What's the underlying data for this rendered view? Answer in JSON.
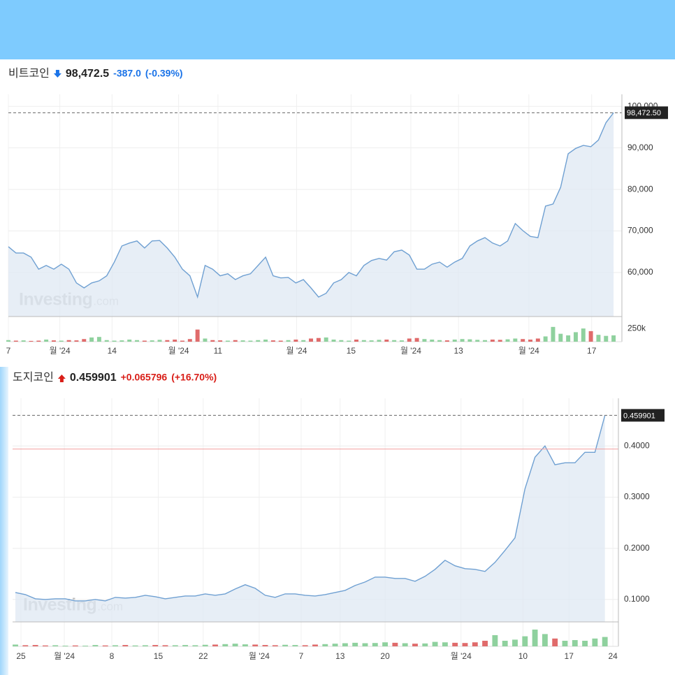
{
  "chart_data": [
    {
      "type": "line",
      "title": "비트코인",
      "price": "98,472.5",
      "change": "-387.0",
      "change_pct": "(-0.39%)",
      "direction": "down",
      "change_color": "#1a73e8",
      "last_price_label": "98,472.50",
      "watermark_brand": "Investing",
      "watermark_suffix": ".com",
      "color": "#6fa0d2",
      "fill": "#dfe8f3",
      "xlim": [
        0,
        81.1
      ],
      "ylim": [
        49400,
        102900
      ],
      "yticks": [
        {
          "value": 60000,
          "label": "60,000"
        },
        {
          "value": 70000,
          "label": "70,000"
        },
        {
          "value": 80000,
          "label": "80,000"
        },
        {
          "value": 90000,
          "label": "90,000"
        },
        {
          "value": 100000,
          "label": "100,000"
        }
      ],
      "xticks": [
        {
          "value": 0,
          "label": "7"
        },
        {
          "value": 6.8,
          "label": "월 '24"
        },
        {
          "value": 13.7,
          "label": "14"
        },
        {
          "value": 22.5,
          "label": "월 '24"
        },
        {
          "value": 27.7,
          "label": "11"
        },
        {
          "value": 38.1,
          "label": "월 '24"
        },
        {
          "value": 45.3,
          "label": "15"
        },
        {
          "value": 53.2,
          "label": "월 '24"
        },
        {
          "value": 59.5,
          "label": "13"
        },
        {
          "value": 68.8,
          "label": "월 '24"
        },
        {
          "value": 77.1,
          "label": "17"
        }
      ],
      "x": [
        0,
        1,
        2,
        3,
        4,
        5,
        6,
        7,
        8,
        9,
        10,
        11,
        12,
        13,
        14,
        15,
        16,
        17,
        18,
        19,
        20,
        21,
        22,
        23,
        24,
        25,
        26,
        27,
        28,
        29,
        30,
        31,
        32,
        33,
        34,
        35,
        36,
        37,
        38,
        39,
        40,
        41,
        42,
        43,
        44,
        45,
        46,
        47,
        48,
        49,
        50,
        51,
        52,
        53,
        54,
        55,
        56,
        57,
        58,
        59,
        60,
        61,
        62,
        63,
        64,
        65,
        66,
        67,
        68,
        69,
        70,
        71,
        72,
        73,
        74,
        75,
        76,
        77,
        78,
        79,
        80
      ],
      "values": [
        66200,
        64700,
        64700,
        63700,
        60800,
        61700,
        60800,
        62000,
        60800,
        57500,
        56300,
        57500,
        58000,
        59200,
        62500,
        66400,
        67100,
        67600,
        65900,
        67600,
        67700,
        65900,
        63700,
        60800,
        59200,
        54100,
        61700,
        60800,
        59200,
        59700,
        58300,
        59200,
        59700,
        61700,
        63700,
        59200,
        58700,
        58800,
        57500,
        58300,
        56300,
        54100,
        55000,
        57500,
        58300,
        60000,
        59200,
        61700,
        62900,
        63400,
        63000,
        65000,
        65400,
        64200,
        60800,
        60800,
        62000,
        62500,
        61300,
        62500,
        63400,
        66400,
        67600,
        68400,
        67100,
        66400,
        67600,
        71800,
        70100,
        68700,
        68400,
        76000,
        76500,
        80500,
        88600,
        89900,
        90600,
        90300,
        91900,
        96100,
        98472.5
      ],
      "volume": {
        "ylim": [
          0,
          450000
        ],
        "yticks": [
          {
            "value": 250000,
            "label": "250k"
          }
        ],
        "up_color": "#8fd19e",
        "down_color": "#e06b6b",
        "values": [
          30000,
          20000,
          25000,
          15000,
          20000,
          40000,
          25000,
          20000,
          30000,
          25000,
          50000,
          80000,
          90000,
          30000,
          20000,
          25000,
          40000,
          30000,
          20000,
          25000,
          35000,
          30000,
          40000,
          20000,
          50000,
          230000,
          60000,
          30000,
          25000,
          20000,
          30000,
          25000,
          20000,
          30000,
          40000,
          25000,
          20000,
          30000,
          40000,
          30000,
          60000,
          70000,
          80000,
          40000,
          30000,
          20000,
          40000,
          30000,
          25000,
          35000,
          40000,
          30000,
          25000,
          60000,
          70000,
          50000,
          40000,
          30000,
          25000,
          40000,
          50000,
          45000,
          35000,
          30000,
          40000,
          35000,
          45000,
          60000,
          50000,
          40000,
          60000,
          100000,
          280000,
          150000,
          120000,
          180000,
          250000,
          200000,
          130000,
          110000,
          120000
        ]
      }
    },
    {
      "type": "line",
      "title": "도지코인",
      "price": "0.459901",
      "change": "+0.065796",
      "change_pct": "(+16.70%)",
      "direction": "up",
      "change_color": "#d91e18",
      "last_price_label": "0.459901",
      "previous_close": 0.394105,
      "previous_close_color": "#f2a0a0",
      "watermark_brand": "Investing",
      "watermark_suffix": ".com",
      "color": "#6fa0d2",
      "fill": "#dfe8f3",
      "xlim": [
        -0.28,
        60.35
      ],
      "ylim": [
        0.0562,
        0.4932
      ],
      "yticks": [
        {
          "value": 0.1,
          "label": "0.1000"
        },
        {
          "value": 0.2,
          "label": "0.2000"
        },
        {
          "value": 0.3,
          "label": "0.3000"
        },
        {
          "value": 0.4,
          "label": "0.4000"
        }
      ],
      "xticks": [
        {
          "value": 0.56,
          "label": "25"
        },
        {
          "value": 4.9,
          "label": "월 '24"
        },
        {
          "value": 9.65,
          "label": "8"
        },
        {
          "value": 14.3,
          "label": "15"
        },
        {
          "value": 18.8,
          "label": "22"
        },
        {
          "value": 24.4,
          "label": "월 '24"
        },
        {
          "value": 28.6,
          "label": "7"
        },
        {
          "value": 32.5,
          "label": "13"
        },
        {
          "value": 37.0,
          "label": "20"
        },
        {
          "value": 44.6,
          "label": "월 '24"
        },
        {
          "value": 50.8,
          "label": "10"
        },
        {
          "value": 55.4,
          "label": "17"
        },
        {
          "value": 59.8,
          "label": "24"
        }
      ],
      "x": [
        0,
        1,
        2,
        3,
        4,
        5,
        6,
        7,
        8,
        9,
        10,
        11,
        12,
        13,
        14,
        15,
        16,
        17,
        18,
        19,
        20,
        21,
        22,
        23,
        24,
        25,
        26,
        27,
        28,
        29,
        30,
        31,
        32,
        33,
        34,
        35,
        36,
        37,
        38,
        39,
        40,
        41,
        42,
        43,
        44,
        45,
        46,
        47,
        48,
        49,
        50,
        51,
        52,
        53,
        54,
        55,
        56,
        57,
        58,
        59
      ],
      "values": [
        0.1137,
        0.1096,
        0.1014,
        0.1,
        0.1014,
        0.1014,
        0.0973,
        0.0973,
        0.1,
        0.0973,
        0.1041,
        0.1027,
        0.1041,
        0.1082,
        0.1055,
        0.1014,
        0.1041,
        0.1068,
        0.1068,
        0.111,
        0.1082,
        0.111,
        0.1205,
        0.1288,
        0.1219,
        0.1082,
        0.1041,
        0.111,
        0.111,
        0.1082,
        0.1068,
        0.1096,
        0.1137,
        0.1178,
        0.1274,
        0.1342,
        0.1438,
        0.1438,
        0.1411,
        0.1411,
        0.1356,
        0.1452,
        0.1589,
        0.1767,
        0.1658,
        0.1603,
        0.1589,
        0.1548,
        0.1726,
        0.1959,
        0.2205,
        0.3164,
        0.378,
        0.4,
        0.3633,
        0.3671,
        0.3671,
        0.3877,
        0.3877,
        0.459901
      ],
      "volume": {
        "ylim": [
          0,
          100
        ],
        "up_color": "#8fd19e",
        "down_color": "#e06b6b",
        "values": [
          8,
          5,
          6,
          4,
          5,
          3,
          4,
          3,
          6,
          4,
          5,
          6,
          4,
          5,
          6,
          5,
          5,
          6,
          5,
          7,
          8,
          10,
          12,
          9,
          8,
          6,
          5,
          7,
          6,
          5,
          8,
          10,
          12,
          14,
          16,
          14,
          15,
          18,
          16,
          14,
          12,
          13,
          20,
          18,
          16,
          15,
          18,
          25,
          50,
          25,
          30,
          45,
          75,
          55,
          35,
          25,
          28,
          25,
          35,
          42
        ]
      }
    }
  ]
}
